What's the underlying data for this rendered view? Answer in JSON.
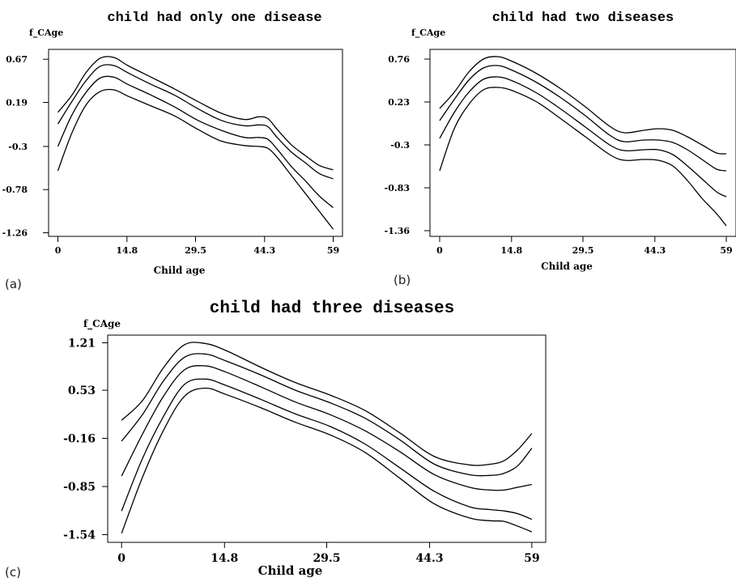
{
  "chart_data": [
    {
      "type": "line",
      "panel_label": "(a)",
      "title": "child had only one disease",
      "ylabel": "f_CAge",
      "xlabel": "Child age",
      "xticks": [
        0,
        14.8,
        29.5,
        44.3,
        59
      ],
      "xtick_labels": [
        "0",
        "14.8",
        "29.5",
        "44.3",
        "59"
      ],
      "yticks": [
        0.67,
        0.19,
        -0.3,
        -0.78,
        -1.26
      ],
      "ytick_labels": [
        "0.67",
        "0.19",
        "-0.3",
        "-0.78",
        "-1.26"
      ],
      "xlim": [
        -2,
        61
      ],
      "ylim": [
        -1.3,
        0.78
      ],
      "grid": false,
      "x": [
        0,
        3,
        6,
        9,
        12,
        15,
        20,
        25,
        30,
        35,
        40,
        43,
        45,
        47,
        50,
        53,
        56,
        59
      ],
      "series": [
        {
          "values": [
            0.08,
            0.27,
            0.52,
            0.68,
            0.69,
            0.6,
            0.47,
            0.34,
            0.2,
            0.07,
            0.0,
            0.03,
            0.01,
            -0.11,
            -0.28,
            -0.4,
            -0.51,
            -0.56
          ]
        },
        {
          "values": [
            -0.05,
            0.2,
            0.43,
            0.59,
            0.6,
            0.52,
            0.39,
            0.27,
            0.12,
            -0.01,
            -0.07,
            -0.06,
            -0.08,
            -0.2,
            -0.36,
            -0.48,
            -0.6,
            -0.66
          ]
        },
        {
          "values": [
            -0.3,
            0.05,
            0.3,
            0.46,
            0.47,
            0.39,
            0.27,
            0.14,
            -0.01,
            -0.12,
            -0.2,
            -0.2,
            -0.22,
            -0.33,
            -0.52,
            -0.68,
            -0.85,
            -0.98
          ]
        },
        {
          "values": [
            -0.57,
            -0.15,
            0.16,
            0.31,
            0.33,
            0.26,
            0.15,
            0.04,
            -0.11,
            -0.24,
            -0.29,
            -0.3,
            -0.32,
            -0.42,
            -0.62,
            -0.82,
            -1.02,
            -1.22
          ]
        }
      ]
    },
    {
      "type": "line",
      "panel_label": "(b)",
      "title": "child had two diseases",
      "ylabel": "f_CAge",
      "xlabel": "Child age",
      "xticks": [
        0,
        14.8,
        29.5,
        44.3,
        59
      ],
      "xtick_labels": [
        "0",
        "14.8",
        "29.5",
        "44.3",
        "59"
      ],
      "yticks": [
        0.76,
        0.23,
        -0.3,
        -0.83,
        -1.36
      ],
      "ytick_labels": [
        "0.76",
        "0.23",
        "-0.3",
        "-0.83",
        "-1.36"
      ],
      "xlim": [
        -2,
        61
      ],
      "ylim": [
        -1.43,
        0.88
      ],
      "grid": false,
      "x": [
        0,
        3,
        6,
        9,
        12,
        15,
        20,
        25,
        30,
        35,
        38,
        42,
        45,
        48,
        51,
        54,
        57,
        59
      ],
      "series": [
        {
          "values": [
            0.15,
            0.35,
            0.6,
            0.76,
            0.79,
            0.73,
            0.58,
            0.39,
            0.17,
            -0.07,
            -0.15,
            -0.12,
            -0.1,
            -0.12,
            -0.2,
            -0.3,
            -0.4,
            -0.41
          ]
        },
        {
          "values": [
            0.0,
            0.26,
            0.5,
            0.65,
            0.68,
            0.62,
            0.47,
            0.28,
            0.06,
            -0.18,
            -0.26,
            -0.24,
            -0.24,
            -0.27,
            -0.36,
            -0.48,
            -0.6,
            -0.62
          ]
        },
        {
          "values": [
            -0.22,
            0.1,
            0.35,
            0.51,
            0.54,
            0.49,
            0.34,
            0.14,
            -0.08,
            -0.3,
            -0.37,
            -0.36,
            -0.36,
            -0.42,
            -0.56,
            -0.72,
            -0.88,
            -0.94
          ]
        },
        {
          "values": [
            -0.62,
            -0.1,
            0.2,
            0.38,
            0.41,
            0.37,
            0.23,
            0.02,
            -0.2,
            -0.42,
            -0.49,
            -0.48,
            -0.49,
            -0.56,
            -0.74,
            -0.96,
            -1.15,
            -1.3
          ]
        }
      ]
    },
    {
      "type": "line",
      "panel_label": "(c)",
      "title": "child had three diseases",
      "ylabel": "f_CAge",
      "xlabel": "Child age",
      "xticks": [
        0,
        14.8,
        29.5,
        44.3,
        59
      ],
      "xtick_labels": [
        "0",
        "14.8",
        "29.5",
        "44.3",
        "59"
      ],
      "yticks": [
        1.21,
        0.53,
        -0.16,
        -0.85,
        -1.54
      ],
      "ytick_labels": [
        "1.21",
        "0.53",
        "-0.16",
        "-0.85",
        "-1.54"
      ],
      "xlim": [
        -2,
        61
      ],
      "ylim": [
        -1.65,
        1.32
      ],
      "grid": false,
      "x": [
        0,
        3,
        6,
        9,
        12,
        15,
        20,
        25,
        30,
        35,
        40,
        45,
        50,
        53,
        55,
        57,
        59
      ],
      "series": [
        {
          "values": [
            0.1,
            0.38,
            0.85,
            1.18,
            1.2,
            1.1,
            0.86,
            0.64,
            0.46,
            0.24,
            -0.08,
            -0.42,
            -0.54,
            -0.53,
            -0.48,
            -0.32,
            -0.09
          ]
        },
        {
          "values": [
            -0.2,
            0.18,
            0.66,
            1.0,
            1.05,
            0.95,
            0.75,
            0.53,
            0.35,
            0.13,
            -0.18,
            -0.53,
            -0.68,
            -0.69,
            -0.66,
            -0.55,
            -0.3
          ]
        },
        {
          "values": [
            -0.7,
            -0.1,
            0.44,
            0.82,
            0.88,
            0.79,
            0.58,
            0.36,
            0.18,
            -0.05,
            -0.35,
            -0.68,
            -0.86,
            -0.9,
            -0.9,
            -0.86,
            -0.82
          ]
        },
        {
          "values": [
            -1.2,
            -0.45,
            0.15,
            0.61,
            0.69,
            0.6,
            0.4,
            0.19,
            0.01,
            -0.24,
            -0.58,
            -0.92,
            -1.14,
            -1.18,
            -1.2,
            -1.24,
            -1.32
          ]
        },
        {
          "values": [
            -1.52,
            -0.72,
            -0.05,
            0.44,
            0.56,
            0.47,
            0.28,
            0.07,
            -0.11,
            -0.36,
            -0.73,
            -1.1,
            -1.3,
            -1.34,
            -1.35,
            -1.42,
            -1.5
          ]
        }
      ]
    }
  ]
}
